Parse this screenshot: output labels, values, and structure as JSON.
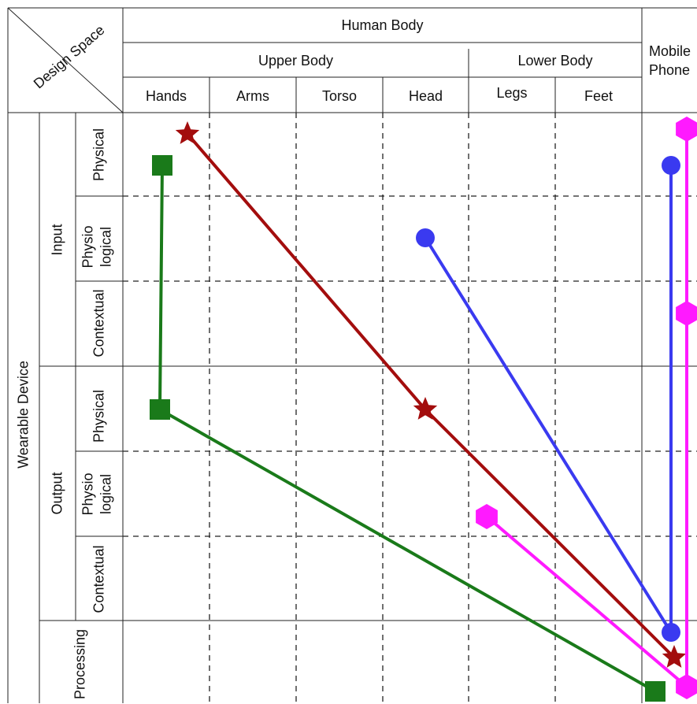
{
  "corner_label": "Design Space",
  "header": {
    "human_body": "Human Body",
    "upper_body": "Upper Body",
    "lower_body": "Lower Body",
    "mobile_phone": [
      "Mobile",
      "Phone"
    ],
    "body_parts": [
      "Hands",
      "Arms",
      "Torso",
      "Head",
      "Legs",
      "Feet"
    ]
  },
  "rows": {
    "wearable_device": "Wearable Device",
    "input": "Input",
    "output": "Output",
    "processing": "Processing",
    "physical": "Physical",
    "physiological": [
      "Physio",
      "logical"
    ],
    "contextual": "Contextual"
  },
  "legend_colors": {
    "green": "#1a7a1a",
    "red": "#a30d0d",
    "blue": "#3a3af0",
    "magenta": "#ff1aff"
  },
  "paths": [
    {
      "id": "green-path",
      "color": "#1a7a1a",
      "marker": "square",
      "points": [
        [
          "Hands",
          "Input Physical"
        ],
        [
          "Hands",
          "Output Physical"
        ],
        [
          "Mobile Phone",
          "Processing"
        ]
      ]
    },
    {
      "id": "red-path",
      "color": "#a30d0d",
      "marker": "star",
      "points": [
        [
          "Hands",
          "Input Physical"
        ],
        [
          "Head",
          "Output Physical"
        ],
        [
          "Mobile Phone",
          "Processing"
        ]
      ]
    },
    {
      "id": "blue-path",
      "color": "#3a3af0",
      "marker": "circle",
      "points": [
        [
          "Head",
          "Input Physiological"
        ],
        [
          "Mobile Phone",
          "Processing"
        ],
        [
          "Mobile Phone",
          "Input Physical"
        ]
      ]
    },
    {
      "id": "magenta-path",
      "color": "#ff1aff",
      "marker": "hexagon",
      "points": [
        [
          "Legs",
          "Output Physiological"
        ],
        [
          "Mobile Phone",
          "Processing"
        ],
        [
          "Mobile Phone",
          "Input Contextual"
        ],
        [
          "Mobile Phone",
          "Input Physical"
        ]
      ]
    }
  ]
}
